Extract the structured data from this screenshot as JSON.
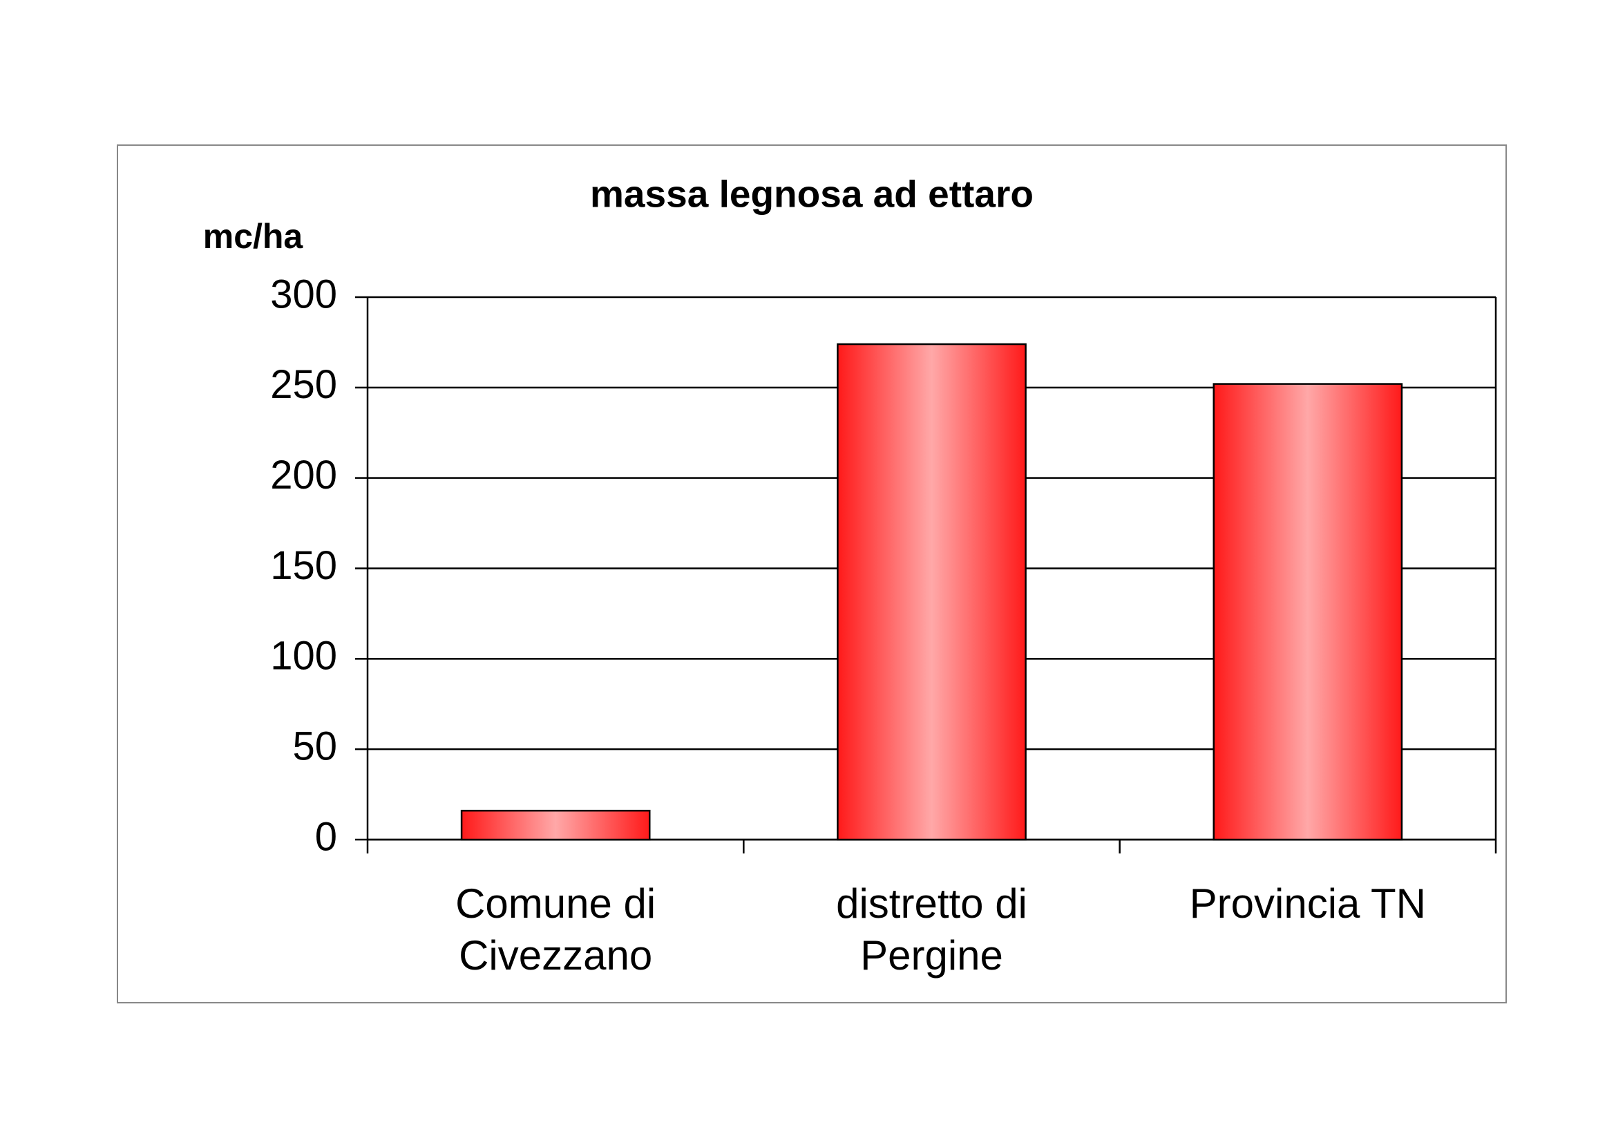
{
  "chart_data": {
    "type": "bar",
    "title": "massa legnosa ad ettaro",
    "y_label": "mc/ha",
    "categories": [
      "Comune di Civezzano",
      "distretto di Pergine",
      "Provincia TN"
    ],
    "values": [
      16,
      274,
      252
    ],
    "color": "#ff1a1a",
    "ylim": [
      0,
      300
    ],
    "yticks": [
      0,
      50,
      100,
      150,
      200,
      250,
      300
    ],
    "grid": true
  }
}
